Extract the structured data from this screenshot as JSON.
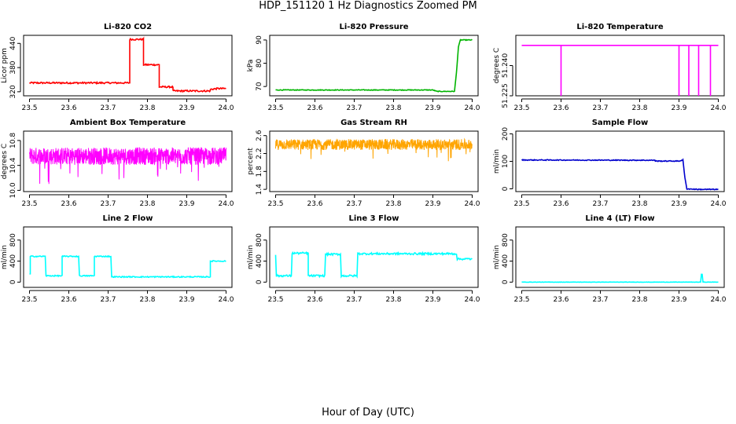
{
  "figure": {
    "title": "HDP_151120  1 Hz Diagnostics Zoomed PM",
    "xlabel": "Hour of Day (UTC)"
  },
  "chart_data": [
    {
      "id": "co2",
      "type": "line",
      "title": "Li-820 CO2",
      "ylabel": "Licor ppm",
      "color": "#ff0000",
      "xlim": [
        23.485,
        24.015
      ],
      "ylim": [
        310,
        460
      ],
      "xticks": [
        23.5,
        23.6,
        23.7,
        23.8,
        23.9,
        24.0
      ],
      "xtick_labels": [
        "23.5",
        "23.6",
        "23.7",
        "23.8",
        "23.9",
        "24.0"
      ],
      "yticks": [
        320,
        380,
        440
      ],
      "ytick_labels": [
        "320",
        "380",
        "440"
      ],
      "series": [
        {
          "name": "Li-820 CO2",
          "x": [
            23.5,
            23.755,
            23.755,
            23.79,
            23.79,
            23.83,
            23.83,
            23.865,
            23.865,
            23.96,
            23.96,
            23.98,
            24.0
          ],
          "y": [
            342,
            342,
            450,
            450,
            387,
            387,
            332,
            332,
            322,
            322,
            326,
            328,
            328
          ]
        }
      ],
      "noise": 2
    },
    {
      "id": "pressure",
      "type": "line",
      "title": "Li-820 Pressure",
      "ylabel": "kPa",
      "color": "#00b400",
      "xlim": [
        23.485,
        24.015
      ],
      "ylim": [
        66,
        92
      ],
      "xticks": [
        23.5,
        23.6,
        23.7,
        23.8,
        23.9,
        24.0
      ],
      "xtick_labels": [
        "23.5",
        "23.6",
        "23.7",
        "23.8",
        "23.9",
        "24.0"
      ],
      "yticks": [
        70,
        80,
        90
      ],
      "ytick_labels": [
        "70",
        "80",
        "90"
      ],
      "series": [
        {
          "name": "Li-820 Pressure",
          "x": [
            23.5,
            23.9,
            23.91,
            23.955,
            23.96,
            23.965,
            23.97,
            24.0
          ],
          "y": [
            68.5,
            68.5,
            67.9,
            67.9,
            76,
            87,
            90,
            90
          ]
        }
      ],
      "noise": 0.15
    },
    {
      "id": "temperature",
      "type": "line",
      "title": "Li-820 Temperature",
      "ylabel": "degrees C",
      "color": "#ff00ff",
      "xlim": [
        23.485,
        24.015
      ],
      "ylim": [
        51.225,
        51.255
      ],
      "xticks": [
        23.5,
        23.6,
        23.7,
        23.8,
        23.9,
        24.0
      ],
      "xtick_labels": [
        "23.5",
        "23.6",
        "23.7",
        "23.8",
        "23.9",
        "24.0"
      ],
      "yticks": [
        51.225,
        51.24
      ],
      "ytick_labels": [
        "51.225",
        "51.240"
      ],
      "series": [
        {
          "name": "Li-820 Temperature",
          "x": [
            23.5,
            23.6,
            23.6,
            23.6,
            23.9,
            23.9,
            23.9,
            23.925,
            23.925,
            23.925,
            23.95,
            23.95,
            23.95,
            23.98,
            23.98,
            23.98,
            24.0
          ],
          "y": [
            51.25,
            51.25,
            51.225,
            51.25,
            51.25,
            51.225,
            51.25,
            51.25,
            51.225,
            51.25,
            51.25,
            51.225,
            51.25,
            51.25,
            51.225,
            51.25,
            51.25
          ]
        }
      ],
      "noise": 0
    },
    {
      "id": "ambient",
      "type": "line",
      "title": "Ambient Box Temperature",
      "ylabel": "degrees C",
      "color": "#ff00ff",
      "xlim": [
        23.485,
        24.015
      ],
      "ylim": [
        9.98,
        10.95
      ],
      "xticks": [
        23.5,
        23.6,
        23.7,
        23.8,
        23.9,
        24.0
      ],
      "xtick_labels": [
        "23.5",
        "23.6",
        "23.7",
        "23.8",
        "23.9",
        "24.0"
      ],
      "yticks": [
        10.0,
        10.4,
        10.8
      ],
      "ytick_labels": [
        "10.0",
        "10.4",
        "10.8"
      ],
      "series": [
        {
          "name": "Ambient Box Temperature",
          "x": [
            23.5,
            24.0
          ],
          "y": [
            10.55,
            10.55
          ]
        }
      ],
      "noise": 0.14,
      "dense": true
    },
    {
      "id": "rh",
      "type": "line",
      "title": "Gas Stream RH",
      "ylabel": "percent",
      "color": "#ffa500",
      "xlim": [
        23.485,
        24.015
      ],
      "ylim": [
        1.35,
        2.7
      ],
      "xticks": [
        23.5,
        23.6,
        23.7,
        23.8,
        23.9,
        24.0
      ],
      "xtick_labels": [
        "23.5",
        "23.6",
        "23.7",
        "23.8",
        "23.9",
        "24.0"
      ],
      "yticks": [
        1.4,
        1.8,
        2.2,
        2.6
      ],
      "ytick_labels": [
        "1.4",
        "1.8",
        "2.2",
        "2.6"
      ],
      "series": [
        {
          "name": "Gas Stream RH",
          "x": [
            23.5,
            24.0
          ],
          "y": [
            2.4,
            2.4
          ]
        }
      ],
      "noise": 0.12,
      "dense": true
    },
    {
      "id": "sample",
      "type": "line",
      "title": "Sample Flow",
      "ylabel": "ml/min",
      "color": "#0000cd",
      "xlim": [
        23.485,
        24.015
      ],
      "ylim": [
        -10,
        210
      ],
      "xticks": [
        23.5,
        23.6,
        23.7,
        23.8,
        23.9,
        24.0
      ],
      "xtick_labels": [
        "23.5",
        "23.6",
        "23.7",
        "23.8",
        "23.9",
        "24.0"
      ],
      "yticks": [
        0,
        100,
        200
      ],
      "ytick_labels": [
        "0",
        "100",
        "200"
      ],
      "series": [
        {
          "name": "Sample Flow",
          "x": [
            23.5,
            23.84,
            23.84,
            23.9,
            23.91,
            23.915,
            23.92,
            23.95,
            24.0
          ],
          "y": [
            105,
            104,
            101,
            101,
            105,
            40,
            0,
            -2,
            -2
          ]
        }
      ],
      "noise": 1.5
    },
    {
      "id": "line2",
      "type": "line",
      "title": "Line 2 Flow",
      "ylabel": "ml/min",
      "color": "#00ffff",
      "xlim": [
        23.485,
        24.015
      ],
      "ylim": [
        -100,
        1050
      ],
      "xticks": [
        23.5,
        23.6,
        23.7,
        23.8,
        23.9,
        24.0
      ],
      "xtick_labels": [
        "23.5",
        "23.6",
        "23.7",
        "23.8",
        "23.9",
        "24.0"
      ],
      "yticks": [
        0,
        400,
        800
      ],
      "ytick_labels": [
        "0",
        "400",
        "800"
      ],
      "series": [
        {
          "name": "Line 2 Flow",
          "x": [
            23.5,
            23.502,
            23.502,
            23.54,
            23.542,
            23.583,
            23.583,
            23.625,
            23.627,
            23.665,
            23.665,
            23.707,
            23.709,
            23.96,
            23.96,
            24.0
          ],
          "y": [
            150,
            150,
            490,
            490,
            120,
            120,
            490,
            490,
            120,
            120,
            490,
            490,
            100,
            100,
            400,
            400
          ]
        }
      ],
      "noise": 10
    },
    {
      "id": "line3",
      "type": "line",
      "title": "Line 3 Flow",
      "ylabel": "ml/min",
      "color": "#00ffff",
      "xlim": [
        23.485,
        24.015
      ],
      "ylim": [
        -100,
        1050
      ],
      "xticks": [
        23.5,
        23.6,
        23.7,
        23.8,
        23.9,
        24.0
      ],
      "xtick_labels": [
        "23.5",
        "23.6",
        "23.7",
        "23.8",
        "23.9",
        "24.0"
      ],
      "yticks": [
        0,
        400,
        800
      ],
      "ytick_labels": [
        "0",
        "400",
        "800"
      ],
      "series": [
        {
          "name": "Line 3 Flow",
          "x": [
            23.5,
            23.502,
            23.504,
            23.54,
            23.542,
            23.583,
            23.583,
            23.625,
            23.627,
            23.665,
            23.667,
            23.707,
            23.709,
            23.96,
            23.962,
            24.0
          ],
          "y": [
            520,
            120,
            120,
            120,
            550,
            550,
            120,
            120,
            530,
            530,
            120,
            120,
            540,
            540,
            440,
            440
          ]
        }
      ],
      "noise": 18
    },
    {
      "id": "line4",
      "type": "line",
      "title": "Line 4 (LT) Flow",
      "ylabel": "ml/min",
      "color": "#00ffff",
      "xlim": [
        23.485,
        24.015
      ],
      "ylim": [
        -100,
        1050
      ],
      "xticks": [
        23.5,
        23.6,
        23.7,
        23.8,
        23.9,
        24.0
      ],
      "xtick_labels": [
        "23.5",
        "23.6",
        "23.7",
        "23.8",
        "23.9",
        "24.0"
      ],
      "yticks": [
        0,
        400,
        800
      ],
      "ytick_labels": [
        "0",
        "400",
        "800"
      ],
      "series": [
        {
          "name": "Line 4 (LT) Flow",
          "x": [
            23.5,
            23.955,
            23.957,
            23.959,
            23.961,
            23.963,
            24.0
          ],
          "y": [
            0,
            0,
            150,
            150,
            0,
            0,
            0
          ]
        }
      ],
      "noise": 3
    }
  ]
}
